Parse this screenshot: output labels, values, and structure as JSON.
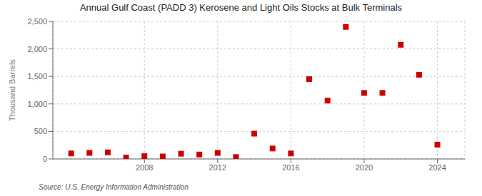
{
  "chart_data": {
    "type": "scatter",
    "title": "Annual Gulf Coast (PADD 3) Kerosene and Light Oils Stocks at Bulk Terminals",
    "ylabel": "Thousand Barrels",
    "annotations": [
      "Source: U.S. Energy Information Administration"
    ],
    "x": [
      2004,
      2005,
      2006,
      2007,
      2008,
      2009,
      2010,
      2011,
      2012,
      2013,
      2014,
      2015,
      2016,
      2017,
      2018,
      2019,
      2020,
      2021,
      2022,
      2023,
      2024
    ],
    "values": [
      100,
      110,
      120,
      25,
      50,
      45,
      95,
      80,
      110,
      35,
      460,
      190,
      100,
      1450,
      1060,
      2400,
      1200,
      1200,
      2075,
      1530,
      260
    ],
    "color": "#cc0000",
    "marker": "square",
    "xlim": [
      2003.0,
      2025.5
    ],
    "xticks": [
      2008,
      2012,
      2016,
      2020,
      2024
    ],
    "ylim": [
      0,
      2500
    ],
    "yticks": [
      0,
      500,
      {
        "value": 1000,
        "label": "1,000"
      },
      {
        "value": 1500,
        "label": "1,500"
      },
      {
        "value": 2000,
        "label": "2,000"
      },
      {
        "value": 2500,
        "label": "2,500"
      }
    ],
    "grid": true
  }
}
